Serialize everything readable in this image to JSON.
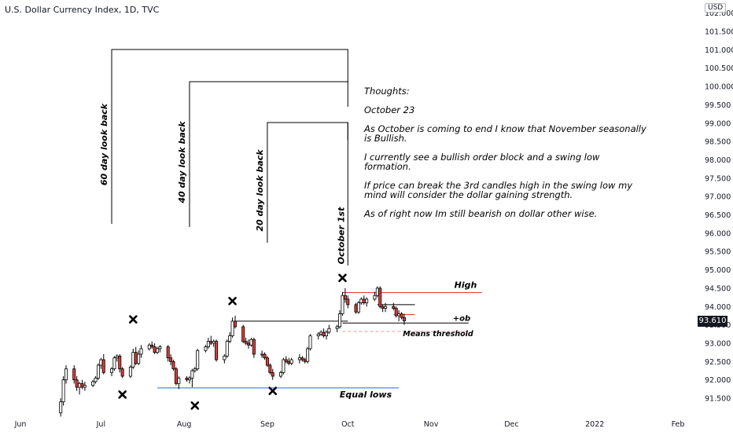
{
  "chart_data": {
    "type": "candlestick",
    "title": "U.S. Dollar Currency Index, 1D, TVC",
    "currency": "USD",
    "last_price": "93.610",
    "ylim": [
      91.2,
      101.8
    ],
    "y_ticks": [
      "91.500",
      "92.000",
      "92.500",
      "93.000",
      "93.500",
      "94.000",
      "94.500",
      "95.000",
      "95.500",
      "96.000",
      "96.500",
      "97.000",
      "97.500",
      "98.000",
      "98.500",
      "99.000",
      "99.500",
      "100.000",
      "100.500",
      "101.000",
      "101.500",
      "102.000"
    ],
    "x_ticks": [
      {
        "label": "Jun",
        "date": "2021-06-01"
      },
      {
        "label": "Jul",
        "date": "2021-07-01"
      },
      {
        "label": "Aug",
        "date": "2021-08-01"
      },
      {
        "label": "Sep",
        "date": "2021-09-01"
      },
      {
        "label": "Oct",
        "date": "2021-10-01"
      },
      {
        "label": "Nov",
        "date": "2021-11-01"
      },
      {
        "label": "Dec",
        "date": "2021-12-01"
      },
      {
        "label": "2022",
        "date": "2022-01-01"
      },
      {
        "label": "Feb",
        "date": "2022-02-01"
      }
    ],
    "candles": [
      [
        "2021-06-16",
        91.1,
        91.5,
        91.0,
        91.4
      ],
      [
        "2021-06-17",
        91.4,
        92.1,
        91.3,
        92.0
      ],
      [
        "2021-06-18",
        92.0,
        92.4,
        91.9,
        92.3
      ],
      [
        "2021-06-21",
        92.3,
        92.4,
        91.9,
        92.0
      ],
      [
        "2021-06-22",
        92.0,
        92.1,
        91.7,
        91.8
      ],
      [
        "2021-06-23",
        91.8,
        91.95,
        91.6,
        91.9
      ],
      [
        "2021-06-24",
        91.9,
        92.0,
        91.75,
        91.8
      ],
      [
        "2021-06-25",
        91.8,
        91.95,
        91.7,
        91.85
      ],
      [
        "2021-06-28",
        91.85,
        92.0,
        91.8,
        91.95
      ],
      [
        "2021-06-29",
        91.95,
        92.1,
        91.9,
        92.05
      ],
      [
        "2021-06-30",
        92.05,
        92.45,
        92.0,
        92.4
      ],
      [
        "2021-07-01",
        92.4,
        92.6,
        92.3,
        92.55
      ],
      [
        "2021-07-02",
        92.55,
        92.7,
        92.15,
        92.2
      ],
      [
        "2021-07-05",
        92.2,
        92.35,
        92.1,
        92.3
      ],
      [
        "2021-07-06",
        92.3,
        92.65,
        92.25,
        92.6
      ],
      [
        "2021-07-07",
        92.6,
        92.7,
        92.5,
        92.65
      ],
      [
        "2021-07-08",
        92.65,
        92.7,
        92.2,
        92.3
      ],
      [
        "2021-07-09",
        92.3,
        92.35,
        92.05,
        92.1
      ],
      [
        "2021-07-12",
        92.1,
        92.4,
        92.05,
        92.35
      ],
      [
        "2021-07-13",
        92.35,
        92.85,
        92.3,
        92.75
      ],
      [
        "2021-07-14",
        92.75,
        92.9,
        92.4,
        92.45
      ],
      [
        "2021-07-15",
        92.45,
        92.8,
        92.4,
        92.7
      ],
      [
        "2021-07-16",
        92.7,
        92.95,
        92.6,
        92.85
      ],
      [
        "2021-07-19",
        92.85,
        93.0,
        92.8,
        92.95
      ],
      [
        "2021-07-20",
        92.95,
        93.05,
        92.85,
        92.9
      ],
      [
        "2021-07-21",
        92.9,
        93.0,
        92.7,
        92.75
      ],
      [
        "2021-07-22",
        92.75,
        92.9,
        92.7,
        92.85
      ],
      [
        "2021-07-23",
        92.85,
        92.95,
        92.75,
        92.9
      ],
      [
        "2021-07-26",
        92.9,
        92.95,
        92.5,
        92.6
      ],
      [
        "2021-07-27",
        92.6,
        92.7,
        92.4,
        92.5
      ],
      [
        "2021-07-28",
        92.5,
        92.55,
        92.25,
        92.3
      ],
      [
        "2021-07-29",
        92.3,
        92.35,
        91.85,
        91.9
      ],
      [
        "2021-07-30",
        91.9,
        92.1,
        91.75,
        92.05
      ],
      [
        "2021-08-02",
        92.05,
        92.1,
        91.95,
        92.0
      ],
      [
        "2021-08-03",
        92.0,
        92.1,
        91.9,
        92.05
      ],
      [
        "2021-08-04",
        92.05,
        92.3,
        91.8,
        92.25
      ],
      [
        "2021-08-05",
        92.25,
        92.35,
        92.2,
        92.3
      ],
      [
        "2021-08-06",
        92.3,
        92.85,
        92.25,
        92.8
      ],
      [
        "2021-08-09",
        92.8,
        92.95,
        92.75,
        92.9
      ],
      [
        "2021-08-10",
        92.9,
        93.15,
        92.85,
        93.05
      ],
      [
        "2021-08-11",
        93.05,
        93.2,
        92.95,
        93.0
      ],
      [
        "2021-08-12",
        93.0,
        93.1,
        92.9,
        93.05
      ],
      [
        "2021-08-13",
        93.05,
        93.1,
        92.5,
        92.55
      ],
      [
        "2021-08-16",
        92.55,
        92.7,
        92.45,
        92.65
      ],
      [
        "2021-08-17",
        92.65,
        93.1,
        92.6,
        93.05
      ],
      [
        "2021-08-18",
        93.05,
        93.3,
        93.0,
        93.2
      ],
      [
        "2021-08-19",
        93.2,
        93.7,
        93.15,
        93.6
      ],
      [
        "2021-08-20",
        93.6,
        93.75,
        93.4,
        93.45
      ],
      [
        "2021-08-23",
        93.45,
        93.5,
        93.0,
        93.05
      ],
      [
        "2021-08-24",
        93.05,
        93.15,
        92.95,
        93.0
      ],
      [
        "2021-08-25",
        93.0,
        93.1,
        92.85,
        92.95
      ],
      [
        "2021-08-26",
        92.95,
        93.15,
        92.9,
        93.1
      ],
      [
        "2021-08-27",
        93.1,
        93.15,
        92.6,
        92.7
      ],
      [
        "2021-08-30",
        92.7,
        92.8,
        92.6,
        92.7
      ],
      [
        "2021-08-31",
        92.7,
        92.75,
        92.55,
        92.6
      ],
      [
        "2021-09-01",
        92.6,
        92.65,
        92.35,
        92.4
      ],
      [
        "2021-09-02",
        92.4,
        92.45,
        92.15,
        92.2
      ],
      [
        "2021-09-03",
        92.2,
        92.3,
        92.0,
        92.1
      ],
      [
        "2021-09-06",
        92.1,
        92.25,
        92.05,
        92.2
      ],
      [
        "2021-09-07",
        92.2,
        92.6,
        92.15,
        92.55
      ],
      [
        "2021-09-08",
        92.55,
        92.65,
        92.45,
        92.5
      ],
      [
        "2021-09-09",
        92.5,
        92.6,
        92.4,
        92.45
      ],
      [
        "2021-09-10",
        92.45,
        92.6,
        92.4,
        92.55
      ],
      [
        "2021-09-13",
        92.55,
        92.7,
        92.45,
        92.6
      ],
      [
        "2021-09-14",
        92.6,
        92.65,
        92.5,
        92.55
      ],
      [
        "2021-09-15",
        92.55,
        92.6,
        92.45,
        92.5
      ],
      [
        "2021-09-16",
        92.5,
        92.9,
        92.45,
        92.85
      ],
      [
        "2021-09-17",
        92.85,
        93.25,
        92.8,
        93.2
      ],
      [
        "2021-09-20",
        93.2,
        93.3,
        93.1,
        93.25
      ],
      [
        "2021-09-21",
        93.25,
        93.35,
        93.2,
        93.3
      ],
      [
        "2021-09-22",
        93.3,
        93.4,
        93.15,
        93.2
      ],
      [
        "2021-09-23",
        93.2,
        93.35,
        93.1,
        93.3
      ],
      [
        "2021-09-24",
        93.3,
        93.5,
        93.25,
        93.4
      ],
      [
        "2021-09-27",
        93.4,
        93.5,
        93.3,
        93.45
      ],
      [
        "2021-09-28",
        93.45,
        93.9,
        93.4,
        93.8
      ],
      [
        "2021-09-29",
        93.8,
        94.4,
        93.75,
        94.3
      ],
      [
        "2021-09-30",
        94.3,
        94.5,
        94.1,
        94.2
      ],
      [
        "2021-10-01",
        94.2,
        94.3,
        93.95,
        94.05
      ],
      [
        "2021-10-04",
        94.05,
        94.1,
        93.8,
        93.85
      ],
      [
        "2021-10-05",
        93.85,
        94.15,
        93.8,
        94.1
      ],
      [
        "2021-10-06",
        94.1,
        94.25,
        94.05,
        94.2
      ],
      [
        "2021-10-07",
        94.2,
        94.3,
        94.05,
        94.1
      ],
      [
        "2021-10-08",
        94.1,
        94.25,
        94.0,
        94.2
      ],
      [
        "2021-10-11",
        94.2,
        94.4,
        94.15,
        94.3
      ],
      [
        "2021-10-12",
        94.3,
        94.55,
        94.25,
        94.5
      ],
      [
        "2021-10-13",
        94.5,
        94.55,
        93.95,
        94.0
      ],
      [
        "2021-10-14",
        94.0,
        94.05,
        93.85,
        93.95
      ],
      [
        "2021-10-15",
        93.95,
        94.1,
        93.85,
        94.0
      ],
      [
        "2021-10-18",
        94.0,
        94.1,
        93.9,
        93.95
      ],
      [
        "2021-10-19",
        93.95,
        94.0,
        93.7,
        93.75
      ],
      [
        "2021-10-20",
        93.75,
        93.9,
        93.6,
        93.8
      ],
      [
        "2021-10-21",
        93.8,
        93.85,
        93.65,
        93.7
      ],
      [
        "2021-10-22",
        93.7,
        93.8,
        93.5,
        93.61
      ]
    ]
  },
  "annotations": {
    "lookbacks": [
      {
        "label": "60 day look back",
        "start": "2021-07-05"
      },
      {
        "label": "40 day look back",
        "start": "2021-08-03"
      },
      {
        "label": "20 day look back",
        "start": "2021-09-01"
      }
    ],
    "october_first": {
      "label": "October 1st",
      "date": "2021-10-01"
    },
    "levels": [
      {
        "label": "High",
        "value": 94.38,
        "from": "2021-09-29",
        "to": "2021-11-20",
        "color": "#e53935"
      },
      {
        "label": "+ob",
        "value": 93.55,
        "from": "2021-09-29",
        "to": "2021-11-15",
        "color": "#000000"
      },
      {
        "label": "Means threshold",
        "value": 93.32,
        "from": "2021-09-29",
        "to": "2021-11-15",
        "color": "#ef9a9a"
      },
      {
        "label": "Equal lows",
        "value": 91.78,
        "from": "2021-07-22",
        "to": "2021-10-20",
        "color": "#2962ff"
      }
    ],
    "extra_lines": [
      {
        "value": 93.6,
        "from": "2021-08-20",
        "to": "2021-10-01",
        "color": "#000000"
      },
      {
        "value": 94.05,
        "from": "2021-10-12",
        "to": "2021-10-26",
        "color": "#000000"
      },
      {
        "value": 93.78,
        "from": "2021-10-18",
        "to": "2021-10-26",
        "color": "#e53935"
      }
    ],
    "swing_marks": [
      {
        "date": "2021-07-13",
        "value": 93.65
      },
      {
        "date": "2021-08-19",
        "value": 94.15
      },
      {
        "date": "2021-09-29",
        "value": 94.78
      },
      {
        "date": "2021-07-09",
        "value": 91.6
      },
      {
        "date": "2021-08-05",
        "value": 91.3
      },
      {
        "date": "2021-09-03",
        "value": 91.7
      }
    ],
    "notes": [
      "Thoughts:",
      "October 23",
      "As October is coming to end I know that November seasonally is Bullish.",
      "I currently see a bullish order block and a swing low formation.",
      "If price can break the 3rd candles high in the swing low my mind will consider the dollar gaining strength.",
      "As of right now Im still bearish on dollar other wise."
    ]
  },
  "colors": {
    "up": "#ffffff",
    "down": "#e53935",
    "wick": "#000000",
    "grid": "#ffffff"
  }
}
